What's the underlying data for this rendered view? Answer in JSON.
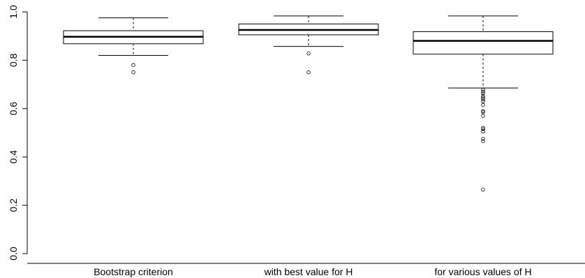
{
  "chart_data": {
    "type": "boxplot",
    "title": "",
    "xlabel": "",
    "ylabel": "",
    "ylim": [
      0.0,
      1.0
    ],
    "yticks": [
      0.0,
      0.2,
      0.4,
      0.6,
      0.8,
      1.0
    ],
    "ytick_labels": [
      "0.0",
      "0.2",
      "0.4",
      "0.6",
      "0.8",
      "1.0"
    ],
    "grid": false,
    "categories": [
      "Bootstrap criterion",
      "with best value for H",
      "for various values of H"
    ],
    "boxes": [
      {
        "whisker_low": 0.82,
        "q1": 0.868,
        "median": 0.897,
        "q3": 0.922,
        "whisker_high": 0.975,
        "outliers": [
          0.78,
          0.75
        ]
      },
      {
        "whisker_low": 0.857,
        "q1": 0.905,
        "median": 0.925,
        "q3": 0.95,
        "whisker_high": 0.983,
        "outliers": [
          0.828,
          0.75
        ]
      },
      {
        "whisker_low": 0.685,
        "q1": 0.825,
        "median": 0.88,
        "q3": 0.918,
        "whisker_high": 0.983,
        "outliers": [
          0.678,
          0.67,
          0.662,
          0.652,
          0.645,
          0.638,
          0.63,
          0.615,
          0.59,
          0.585,
          0.57,
          0.52,
          0.515,
          0.505,
          0.475,
          0.465,
          0.265
        ]
      }
    ]
  }
}
